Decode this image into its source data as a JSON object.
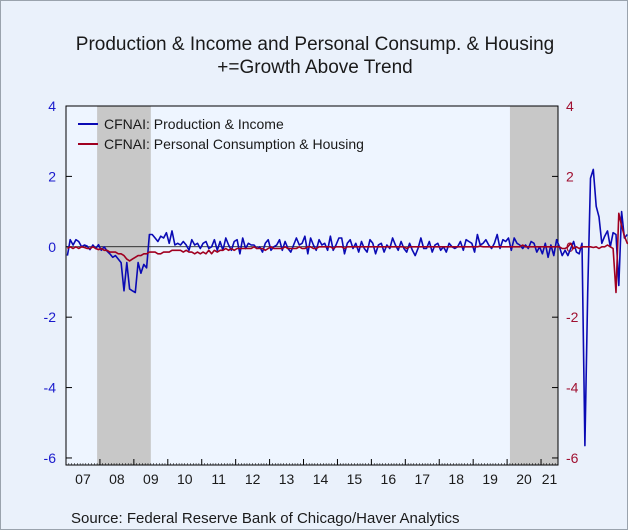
{
  "chart_data": {
    "type": "line",
    "title": "Production & Income and Personal Consump. & Housing",
    "subtitle": "+=Growth Above Trend",
    "source": "Source:  Federal Reserve Bank of Chicago/Haver Analytics",
    "x_start": "2007-01",
    "x_end": "2021-06",
    "x_tick_labels": [
      "07",
      "08",
      "09",
      "10",
      "11",
      "12",
      "13",
      "14",
      "15",
      "16",
      "17",
      "18",
      "19",
      "20",
      "21"
    ],
    "left_axis": {
      "ylim": [
        -6.2,
        4
      ],
      "ticks": [
        "4",
        "2",
        "0",
        "-2",
        "-4",
        "-6"
      ],
      "color": "#1a1acc"
    },
    "right_axis": {
      "ylim": [
        -6.2,
        4
      ],
      "ticks": [
        "4",
        "2",
        "0",
        "-2",
        "-4",
        "-6"
      ],
      "color": "#a01030"
    },
    "recessions": [
      {
        "start": "2007-12",
        "end": "2009-06"
      },
      {
        "start": "2020-02",
        "end": "2021-06"
      }
    ],
    "legend_position": "top-left",
    "series": [
      {
        "name": "CFNAI: Production & Income",
        "color": "#0a0ab4",
        "values": [
          -0.25,
          0.2,
          0.05,
          0.2,
          0.15,
          0,
          0.05,
          0.02,
          -0.08,
          0.05,
          -0.05,
          0.06,
          -0.1,
          0,
          -0.12,
          -0.2,
          -0.3,
          -0.25,
          -0.35,
          -0.45,
          -1.25,
          -0.45,
          -1.2,
          -1.25,
          -1.3,
          -0.45,
          -0.75,
          -0.5,
          -0.6,
          0.35,
          0.35,
          0.25,
          0.15,
          0.3,
          0.25,
          0.4,
          0.1,
          0.45,
          0.05,
          0.1,
          0.05,
          0.15,
          0.05,
          -0.1,
          0.2,
          0.05,
          0.1,
          -0.05,
          0.1,
          0.15,
          -0.05,
          0,
          0.2,
          -0.1,
          0.15,
          -0.1,
          0.25,
          0.05,
          -0.1,
          0.15,
          0.2,
          -0.2,
          0.25,
          -0.05,
          0.1,
          0.05,
          0.05,
          -0.05,
          0,
          -0.15,
          0.1,
          0.2,
          -0.1,
          0,
          0.05,
          0.2,
          -0.1,
          0.15,
          -0.05,
          -0.15,
          0.05,
          0.25,
          0.05,
          0.1,
          0.3,
          -0.2,
          0.25,
          0.05,
          -0.1,
          0.2,
          0.05,
          0.1,
          -0.1,
          0.3,
          -0.1,
          0.05,
          0.25,
          0.25,
          -0.2,
          0.1,
          0.2,
          -0.05,
          0.1,
          -0.15,
          0.15,
          -0.05,
          -0.15,
          0.2,
          0.1,
          -0.2,
          0.05,
          0.1,
          -0.15,
          0.05,
          -0.05,
          0.25,
          0.05,
          -0.1,
          0.15,
          -0.05,
          -0.15,
          0.1,
          -0.1,
          -0.25,
          -0.05,
          0.25,
          -0.05,
          -0.05,
          0.15,
          -0.15,
          0.05,
          0.1,
          -0.1,
          0,
          -0.15,
          0.1,
          0,
          -0.05,
          0,
          0.15,
          -0.1,
          0.2,
          0.15,
          0.1,
          -0.15,
          0.35,
          0.05,
          0.1,
          0.2,
          0.05,
          -0.05,
          0.1,
          0.35,
          -0.05,
          0.2,
          0.15,
          0.25,
          -0.1,
          0.25,
          0.1,
          0.05,
          -0.05,
          0.05,
          -0.05,
          0.15,
          0.1,
          -0.15,
          0,
          -0.2,
          0.1,
          -0.3,
          0.05,
          -0.25,
          0.2,
          0,
          -0.25,
          -0.1,
          -0.25,
          -0.05,
          0.15,
          -0.15,
          -0.2,
          0.1,
          -5.65,
          -1.3,
          1.95,
          2.2,
          1.15,
          0.85,
          0.1,
          0.3,
          0.45,
          0,
          0.4,
          0.35,
          -1.1,
          1,
          0.25,
          0.35
        ]
      },
      {
        "name": "CFNAI: Personal Consumption & Housing",
        "color": "#a00020",
        "values": [
          -0.05,
          0,
          -0.05,
          0,
          -0.05,
          0,
          -0.02,
          -0.05,
          -0.05,
          0,
          -0.05,
          -0.08,
          -0.05,
          -0.1,
          -0.1,
          -0.15,
          -0.15,
          -0.15,
          -0.2,
          -0.2,
          -0.25,
          -0.35,
          -0.4,
          -0.35,
          -0.3,
          -0.25,
          -0.25,
          -0.2,
          -0.2,
          -0.15,
          -0.15,
          -0.15,
          -0.2,
          -0.2,
          -0.15,
          -0.15,
          -0.15,
          -0.1,
          -0.1,
          -0.1,
          -0.1,
          -0.15,
          -0.1,
          -0.15,
          -0.15,
          -0.2,
          -0.15,
          -0.2,
          -0.15,
          -0.2,
          -0.1,
          -0.2,
          -0.1,
          -0.15,
          -0.1,
          -0.1,
          -0.05,
          -0.1,
          -0.05,
          -0.1,
          -0.05,
          -0.05,
          -0.05,
          -0.05,
          -0.05,
          -0.05,
          0,
          -0.05,
          -0.05,
          -0.05,
          -0.1,
          -0.05,
          0,
          -0.05,
          -0.05,
          -0.05,
          -0.05,
          0,
          -0.05,
          -0.05,
          -0.05,
          -0.05,
          0,
          -0.05,
          -0.05,
          0,
          0,
          -0.05,
          -0.05,
          0,
          0,
          0,
          0,
          0,
          -0.05,
          0,
          0,
          0,
          -0.05,
          0,
          0,
          0,
          0,
          0,
          0,
          0,
          0,
          0,
          0,
          0,
          0,
          0,
          0,
          0,
          0,
          0,
          0,
          0,
          0,
          0,
          -0.05,
          0,
          0,
          0,
          0,
          0,
          0,
          0,
          0,
          0,
          0,
          0,
          0,
          0,
          0,
          0,
          0,
          0,
          0,
          0,
          0,
          0,
          0,
          0,
          0,
          0,
          0.02,
          0,
          0,
          0,
          0,
          0,
          0,
          0,
          0,
          0,
          0,
          0,
          0,
          0,
          0,
          0.05,
          0,
          0,
          0,
          0,
          0,
          0,
          0,
          0,
          0,
          0,
          0,
          0,
          0,
          -0.05,
          -0.05,
          0,
          0.1,
          -0.05,
          0,
          -0.05,
          0,
          0,
          0,
          0,
          -0.02,
          0,
          -0.05,
          0,
          0,
          0.05,
          0,
          -0.05,
          -1.3,
          0.95,
          0.6,
          0.3,
          0.1,
          0.1,
          0.2,
          0,
          -0.05,
          -0.1,
          -0.05,
          0.1,
          0.5,
          -0.15,
          0,
          -0.15
        ]
      }
    ]
  }
}
